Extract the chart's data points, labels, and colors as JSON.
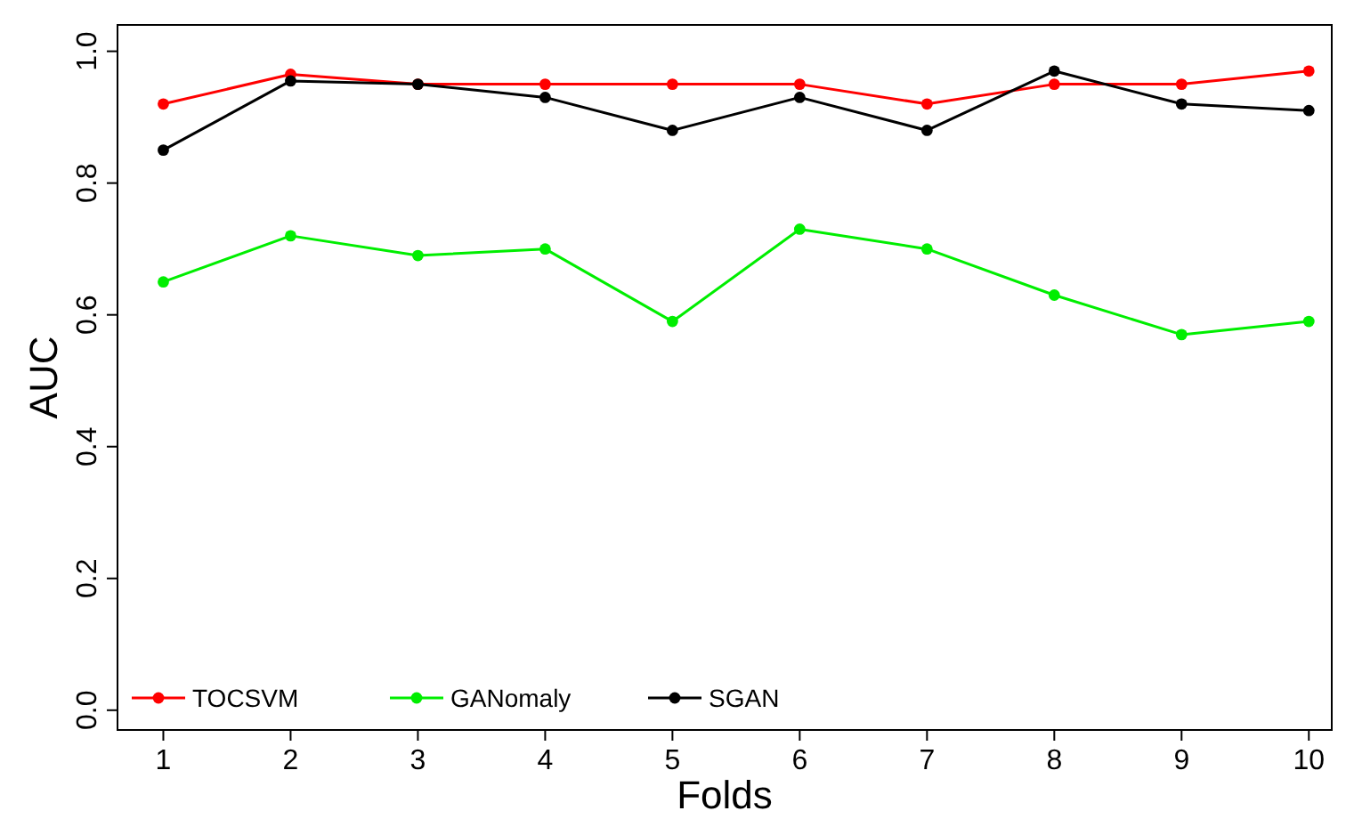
{
  "chart_data": {
    "type": "line",
    "xlabel": "Folds",
    "ylabel": "AUC",
    "x": [
      1,
      2,
      3,
      4,
      5,
      6,
      7,
      8,
      9,
      10
    ],
    "series": [
      {
        "name": "TOCSVM",
        "color": "#ff0000",
        "values": [
          0.92,
          0.965,
          0.95,
          0.95,
          0.95,
          0.95,
          0.92,
          0.95,
          0.95,
          0.97
        ]
      },
      {
        "name": "GANomaly",
        "color": "#00ee00",
        "values": [
          0.65,
          0.72,
          0.69,
          0.7,
          0.59,
          0.73,
          0.7,
          0.63,
          0.57,
          0.59
        ]
      },
      {
        "name": "SGAN",
        "color": "#000000",
        "values": [
          0.85,
          0.955,
          0.95,
          0.93,
          0.88,
          0.93,
          0.88,
          0.97,
          0.92,
          0.91
        ]
      }
    ],
    "xlim": [
      0.64,
      10.18
    ],
    "ylim": [
      -0.03,
      1.04
    ],
    "xticks": [
      1,
      2,
      3,
      4,
      5,
      6,
      7,
      8,
      9,
      10
    ],
    "yticks": [
      {
        "value": 0,
        "label": "0.0"
      },
      {
        "value": 0.2,
        "label": "0.2"
      },
      {
        "value": 0.4,
        "label": "0.4"
      },
      {
        "value": 0.6,
        "label": "0.6"
      },
      {
        "value": 0.8,
        "label": "0.8"
      },
      {
        "value": 1,
        "label": "1.0"
      }
    ],
    "marker": "circle",
    "legend": "bottom left",
    "grid": false
  }
}
